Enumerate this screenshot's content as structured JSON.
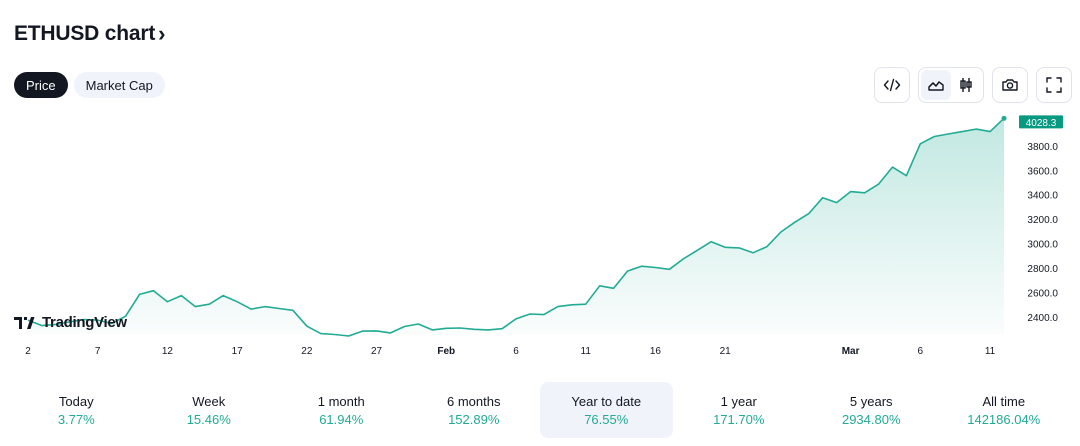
{
  "header": {
    "title": "ETHUSD chart",
    "chevron": "›"
  },
  "tabs": [
    {
      "label": "Price",
      "active": true
    },
    {
      "label": "Market Cap",
      "active": false
    }
  ],
  "toolbar": {
    "embed_icon": "code-icon",
    "area_icon": "area-chart-icon",
    "candle_icon": "candlestick-icon",
    "snapshot_icon": "camera-icon",
    "fullscreen_icon": "fullscreen-icon",
    "active_style": "area"
  },
  "watermark": {
    "text": "TradingView"
  },
  "colors": {
    "line": "#22ab94",
    "fill": "#22ab94",
    "tag": "#089981",
    "text": "#131722",
    "positive": "#22ab94"
  },
  "chart_data": {
    "type": "area",
    "y_ticks": [
      "3800.0",
      "3600.0",
      "3400.0",
      "3200.0",
      "3000.0",
      "2800.0",
      "2600.0",
      "2400.0"
    ],
    "y_tick_values": [
      3800,
      3600,
      3400,
      3200,
      3000,
      2800,
      2600,
      2400
    ],
    "ylim": [
      2250,
      4080
    ],
    "x_ticks": [
      {
        "label": "2",
        "day": 2,
        "bold": false
      },
      {
        "label": "7",
        "day": 7,
        "bold": false
      },
      {
        "label": "12",
        "day": 12,
        "bold": false
      },
      {
        "label": "17",
        "day": 17,
        "bold": false
      },
      {
        "label": "22",
        "day": 22,
        "bold": false
      },
      {
        "label": "27",
        "day": 27,
        "bold": false
      },
      {
        "label": "Feb",
        "day": 32,
        "bold": true
      },
      {
        "label": "6",
        "day": 37,
        "bold": false
      },
      {
        "label": "11",
        "day": 42,
        "bold": false
      },
      {
        "label": "16",
        "day": 47,
        "bold": false
      },
      {
        "label": "21",
        "day": 52,
        "bold": false
      },
      {
        "label": "Mar",
        "day": 61,
        "bold": true
      },
      {
        "label": "6",
        "day": 66,
        "bold": false
      },
      {
        "label": "11",
        "day": 71,
        "bold": false
      }
    ],
    "last_price": "4028.3",
    "values": [
      2380,
      2335,
      2345,
      2365,
      2385,
      2380,
      2352,
      2412,
      2590,
      2620,
      2530,
      2580,
      2490,
      2510,
      2580,
      2530,
      2470,
      2490,
      2475,
      2460,
      2330,
      2270,
      2262,
      2250,
      2290,
      2292,
      2275,
      2328,
      2348,
      2300,
      2313,
      2315,
      2305,
      2300,
      2310,
      2390,
      2430,
      2425,
      2490,
      2505,
      2510,
      2660,
      2640,
      2780,
      2820,
      2810,
      2795,
      2880,
      2950,
      3020,
      2975,
      2970,
      2930,
      2980,
      3100,
      3180,
      3250,
      3380,
      3340,
      3430,
      3420,
      3490,
      3630,
      3560,
      3820,
      3880,
      3900,
      3920,
      3940,
      3920,
      4028.3
    ]
  },
  "performance": [
    {
      "label": "Today",
      "value": "3.77%",
      "active": false
    },
    {
      "label": "Week",
      "value": "15.46%",
      "active": false
    },
    {
      "label": "1 month",
      "value": "61.94%",
      "active": false
    },
    {
      "label": "6 months",
      "value": "152.89%",
      "active": false
    },
    {
      "label": "Year to date",
      "value": "76.55%",
      "active": true
    },
    {
      "label": "1 year",
      "value": "171.70%",
      "active": false
    },
    {
      "label": "5 years",
      "value": "2934.80%",
      "active": false
    },
    {
      "label": "All time",
      "value": "142186.04%",
      "active": false
    }
  ]
}
